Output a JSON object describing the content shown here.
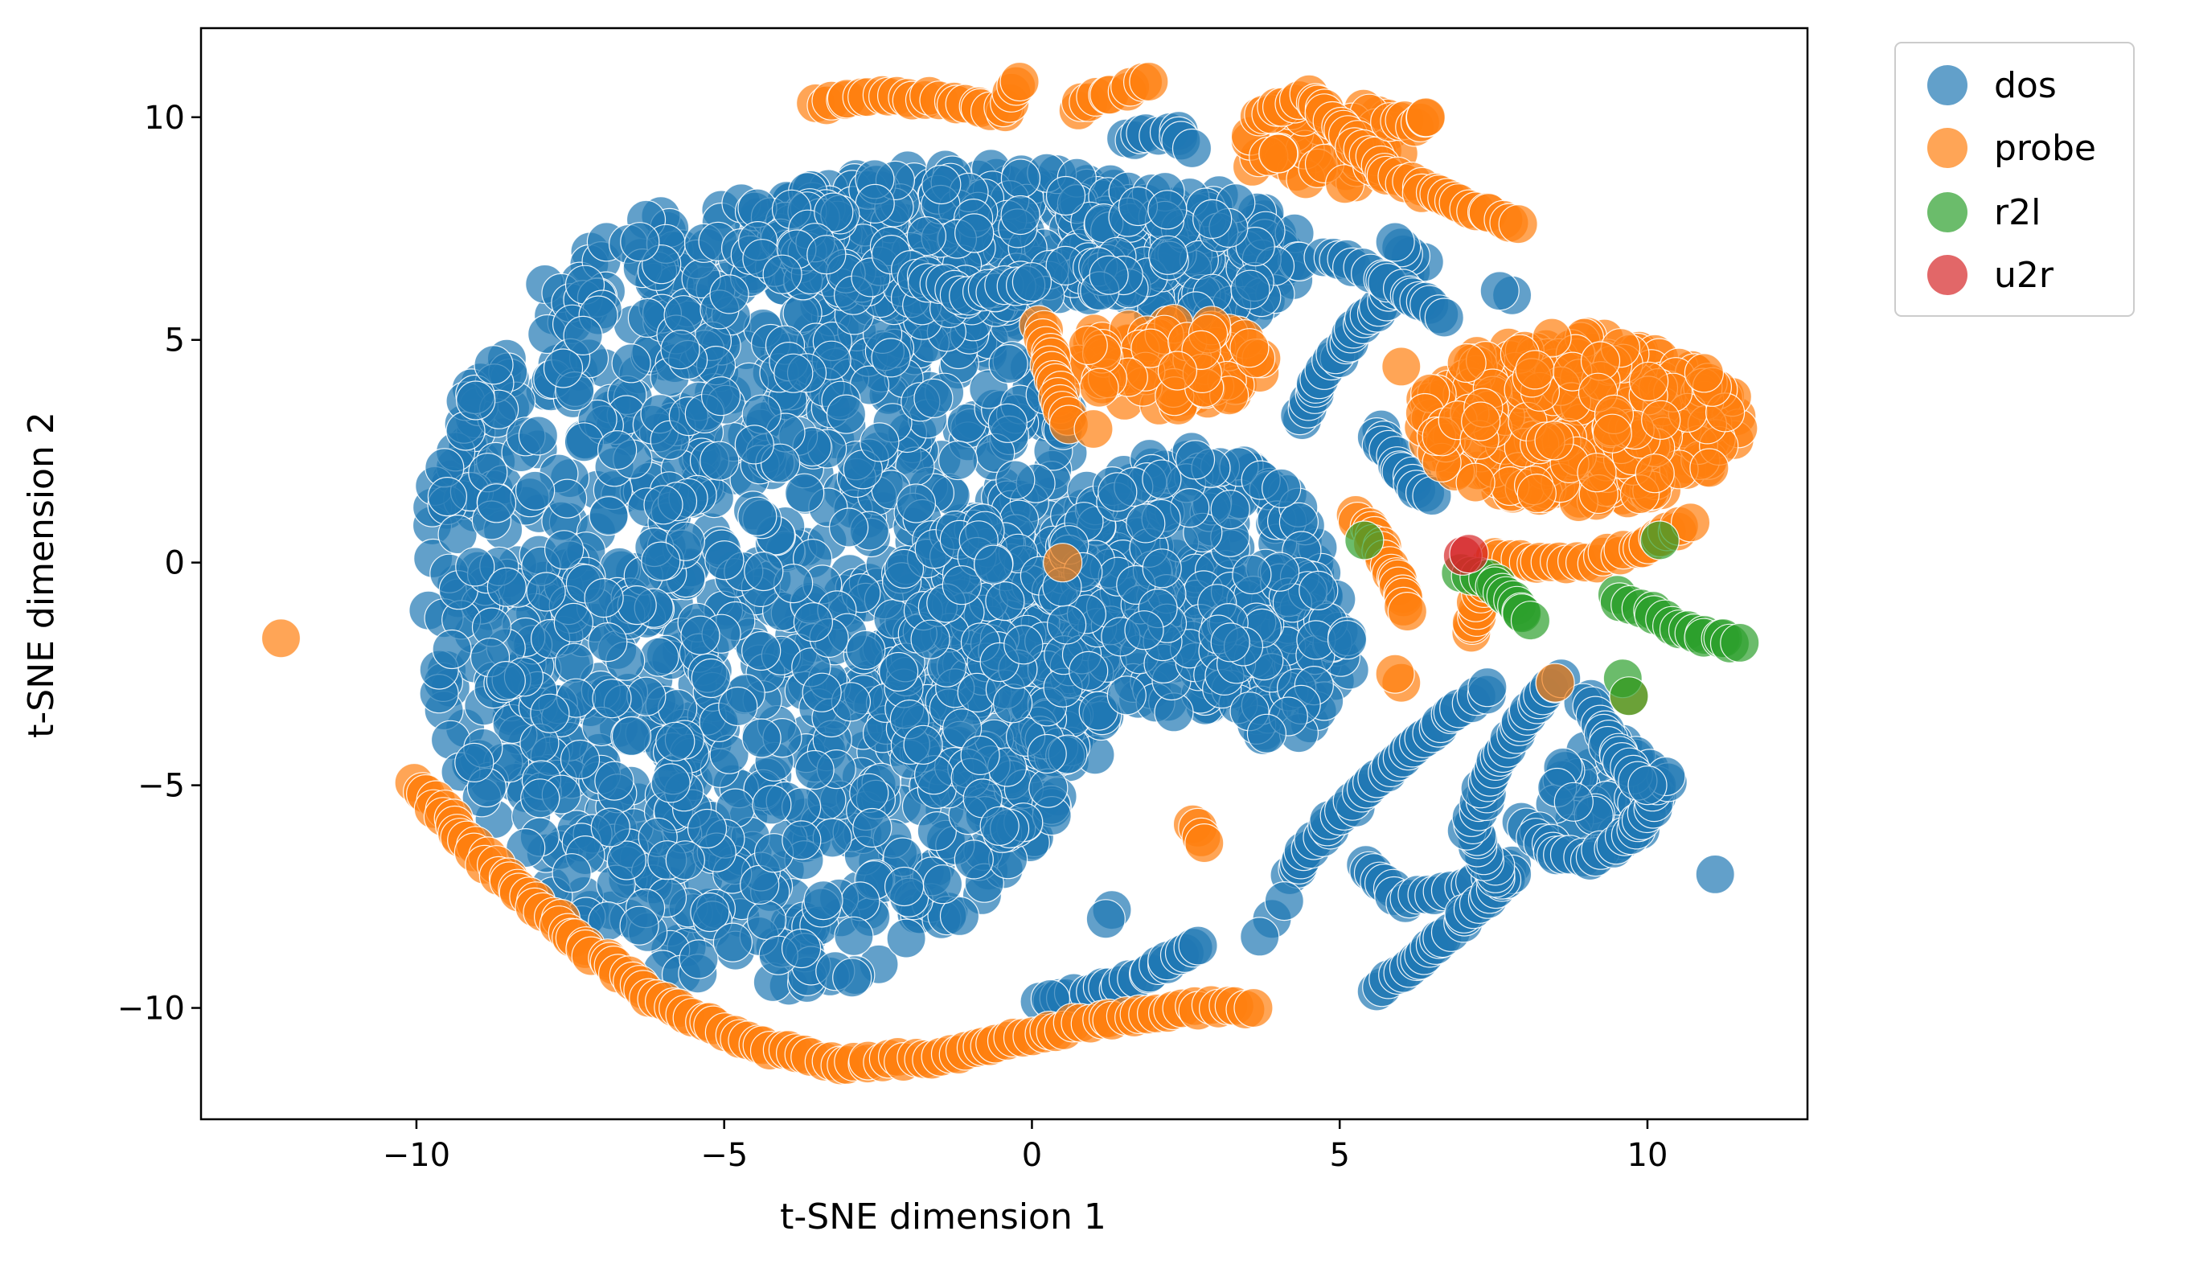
{
  "chart_data": {
    "type": "scatter",
    "title": "",
    "xlabel": "t-SNE dimension 1",
    "ylabel": "t-SNE dimension 2",
    "xlim": [
      -13.5,
      12.6
    ],
    "ylim": [
      -12.5,
      12.0
    ],
    "xticks": [
      -10,
      -5,
      0,
      5,
      10
    ],
    "yticks": [
      -10,
      -5,
      0,
      5,
      10
    ],
    "xtick_labels": [
      "−10",
      "−5",
      "0",
      "5",
      "10"
    ],
    "ytick_labels": [
      "−10",
      "−5",
      "0",
      "5",
      "10"
    ],
    "grid": false,
    "legend": {
      "placement": "outside top-right",
      "entries": [
        "dos",
        "probe",
        "r2l",
        "u2r"
      ]
    },
    "series": [
      {
        "name": "dos",
        "color": "#1f77b4",
        "regions": [
          {
            "shape": "ellipse",
            "cx": -4.3,
            "cy": -0.6,
            "rx": 5.6,
            "ry": 9.0,
            "n": 1300
          },
          {
            "shape": "ellipse",
            "cx": -1.0,
            "cy": 7.3,
            "rx": 3.8,
            "ry": 1.6,
            "n": 260
          },
          {
            "shape": "ellipse",
            "cx": 2.6,
            "cy": 6.8,
            "rx": 1.8,
            "ry": 1.6,
            "n": 140
          },
          {
            "shape": "ellipse",
            "cx": -0.5,
            "cy": -2.5,
            "rx": 1.8,
            "ry": 3.6,
            "n": 160
          },
          {
            "shape": "ellipse",
            "cx": 2.6,
            "cy": -0.5,
            "rx": 2.2,
            "ry": 3.0,
            "n": 240
          },
          {
            "shape": "ellipse",
            "cx": 4.0,
            "cy": -2.0,
            "rx": 1.2,
            "ry": 2.0,
            "n": 90
          },
          {
            "shape": "ellipse",
            "cx": 9.3,
            "cy": -5.2,
            "rx": 0.9,
            "ry": 1.2,
            "n": 45
          }
        ],
        "arcs": [
          [
            [
              0.2,
              -9.9
            ],
            [
              1.5,
              -9.5
            ],
            [
              2.7,
              -8.6
            ]
          ],
          [
            [
              4.2,
              -7.0
            ],
            [
              4.9,
              -5.8
            ],
            [
              5.8,
              -4.6
            ],
            [
              6.7,
              -3.6
            ],
            [
              7.4,
              -2.8
            ]
          ],
          [
            [
              5.4,
              -6.8
            ],
            [
              6.0,
              -7.6
            ],
            [
              7.0,
              -7.3
            ],
            [
              7.6,
              -6.9
            ],
            [
              7.8,
              -6.8
            ]
          ],
          [
            [
              5.6,
              -9.6
            ],
            [
              6.3,
              -8.9
            ],
            [
              7.0,
              -8.0
            ],
            [
              7.8,
              -7.0
            ]
          ],
          [
            [
              7.6,
              -7.2
            ],
            [
              7.1,
              -6.0
            ],
            [
              7.5,
              -4.5
            ],
            [
              8.2,
              -3.2
            ],
            [
              8.6,
              -2.6
            ]
          ],
          [
            [
              8.0,
              -5.8
            ],
            [
              8.5,
              -6.6
            ],
            [
              9.2,
              -6.6
            ],
            [
              9.9,
              -5.9
            ],
            [
              10.3,
              -4.8
            ]
          ],
          [
            [
              9.0,
              -3.0
            ],
            [
              9.5,
              -4.4
            ],
            [
              10.0,
              -5.0
            ]
          ],
          [
            [
              4.4,
              3.2
            ],
            [
              4.7,
              4.2
            ],
            [
              5.2,
              5.1
            ],
            [
              5.8,
              6.0
            ],
            [
              6.3,
              6.7
            ],
            [
              5.9,
              7.2
            ]
          ],
          [
            [
              5.6,
              3.0
            ],
            [
              6.0,
              2.0
            ],
            [
              6.5,
              1.5
            ]
          ],
          [
            [
              4.7,
              6.9
            ],
            [
              5.4,
              6.6
            ],
            [
              6.2,
              6.0
            ],
            [
              6.7,
              5.5
            ]
          ],
          [
            [
              1.5,
              9.5
            ],
            [
              2.3,
              9.7
            ],
            [
              2.6,
              9.3
            ]
          ],
          [
            [
              -2.0,
              6.5
            ],
            [
              -1.0,
              6.0
            ],
            [
              0.0,
              6.3
            ]
          ]
        ],
        "points": [
          [
            11.1,
            -7.0
          ],
          [
            7.8,
            6.0
          ],
          [
            3.9,
            -8.0
          ],
          [
            3.7,
            -8.4
          ],
          [
            4.1,
            -7.6
          ],
          [
            0.3,
            -9.8
          ],
          [
            1.3,
            -7.8
          ],
          [
            1.2,
            -8.0
          ],
          [
            7.6,
            6.1
          ]
        ]
      },
      {
        "name": "probe",
        "color": "#ff7f0e",
        "regions": [
          {
            "shape": "ellipse",
            "cx": 8.9,
            "cy": 3.2,
            "rx": 2.6,
            "ry": 1.9,
            "n": 330
          },
          {
            "shape": "ellipse",
            "cx": 2.2,
            "cy": 4.5,
            "rx": 1.6,
            "ry": 1.0,
            "n": 85
          },
          {
            "shape": "ellipse",
            "cx": 4.7,
            "cy": 9.4,
            "rx": 1.4,
            "ry": 1.0,
            "n": 55
          }
        ],
        "arcs": [
          [
            [
              -10.0,
              -5.0
            ],
            [
              -9.0,
              -6.5
            ],
            [
              -7.5,
              -8.4
            ],
            [
              -6.0,
              -9.9
            ],
            [
              -4.5,
              -10.8
            ],
            [
              -3.0,
              -11.3
            ],
            [
              -1.5,
              -11.1
            ],
            [
              0.0,
              -10.6
            ],
            [
              1.5,
              -10.2
            ],
            [
              2.6,
              -10.0
            ],
            [
              3.6,
              -10.0
            ]
          ],
          [
            [
              -3.5,
              10.3
            ],
            [
              -2.5,
              10.5
            ],
            [
              -1.5,
              10.4
            ],
            [
              -0.5,
              10.1
            ],
            [
              -0.2,
              10.8
            ]
          ],
          [
            [
              0.7,
              10.2
            ],
            [
              1.2,
              10.5
            ],
            [
              1.9,
              10.8
            ]
          ],
          [
            [
              3.6,
              10.0
            ],
            [
              4.5,
              10.5
            ],
            [
              5.2,
              9.5
            ],
            [
              5.8,
              8.7
            ],
            [
              6.5,
              8.3
            ],
            [
              7.2,
              7.9
            ],
            [
              7.9,
              7.6
            ]
          ],
          [
            [
              5.8,
              10.0
            ],
            [
              6.3,
              9.8
            ],
            [
              6.4,
              10.0
            ]
          ],
          [
            [
              7.1,
              -1.6
            ],
            [
              7.5,
              0.1
            ],
            [
              8.3,
              0.0
            ],
            [
              9.0,
              0.0
            ],
            [
              9.8,
              0.3
            ],
            [
              10.7,
              0.9
            ]
          ],
          [
            [
              5.3,
              1.1
            ],
            [
              5.9,
              -0.3
            ],
            [
              6.1,
              -1.1
            ]
          ],
          [
            [
              0.1,
              5.3
            ],
            [
              0.4,
              4.0
            ],
            [
              0.6,
              3.1
            ]
          ],
          [
            [
              2.7,
              -5.9
            ],
            [
              2.8,
              -6.3
            ]
          ]
        ],
        "points": [
          [
            -12.2,
            -1.7
          ],
          [
            6.0,
            4.4
          ],
          [
            6.0,
            -2.7
          ],
          [
            8.5,
            -2.7
          ],
          [
            0.5,
            0.0
          ],
          [
            5.9,
            -2.5
          ],
          [
            9.7,
            -3.0
          ],
          [
            1.0,
            3.0
          ]
        ]
      },
      {
        "name": "r2l",
        "color": "#2ca02c",
        "regions": [],
        "arcs": [
          [
            [
              7.0,
              -0.2
            ],
            [
              7.5,
              -0.4
            ],
            [
              8.1,
              -1.3
            ]
          ],
          [
            [
              9.5,
              -0.7
            ],
            [
              10.0,
              -1.1
            ],
            [
              10.5,
              -1.5
            ],
            [
              11.0,
              -1.7
            ],
            [
              11.5,
              -1.8
            ]
          ]
        ],
        "points": [
          [
            5.4,
            0.5
          ],
          [
            9.6,
            -2.6
          ],
          [
            9.7,
            -3.0
          ],
          [
            10.2,
            0.5
          ]
        ]
      },
      {
        "name": "u2r",
        "color": "#d62728",
        "regions": [],
        "arcs": [],
        "points": [
          [
            7.0,
            0.15
          ],
          [
            7.1,
            0.2
          ]
        ]
      }
    ]
  }
}
